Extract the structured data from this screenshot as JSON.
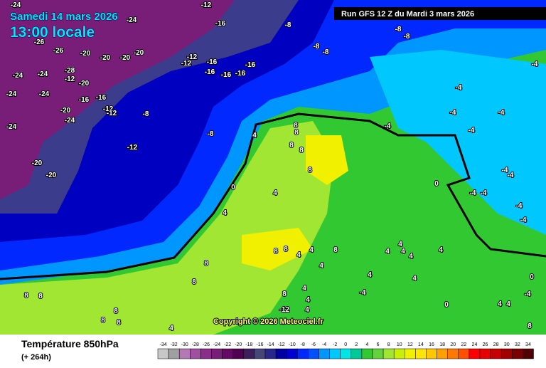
{
  "header": {
    "date": "Samedi 14 mars 2026",
    "time": "13:00 locale",
    "run": "Run GFS 12 Z du Mardi 3 mars 2026"
  },
  "map": {
    "copyright": "Copyright © 2026 Meteociel.fr",
    "labels": [
      -12,
      -16,
      -8,
      -8,
      -8,
      -8,
      -8,
      -4,
      -26,
      -26,
      -20,
      -20,
      -20,
      -20,
      -12,
      -12,
      -16,
      -16,
      -16,
      -16,
      -16,
      -24,
      -24,
      -28,
      -12,
      -20,
      -24,
      -24,
      -16,
      -16,
      -12,
      -12,
      -8,
      -20,
      -24,
      -24,
      -8,
      -12,
      -20,
      -20,
      -4,
      -4,
      -4,
      -4,
      -4,
      -4,
      -4,
      -4,
      -4,
      -4,
      -4,
      4,
      8,
      8,
      8,
      8,
      8,
      0,
      4,
      4,
      0,
      8,
      8,
      8,
      4,
      4,
      8,
      4,
      4,
      4,
      4,
      4,
      4,
      4,
      4,
      8,
      8,
      8,
      8,
      4,
      4,
      -4,
      4,
      -12,
      -4,
      8,
      8,
      8,
      4,
      0,
      4,
      4,
      0,
      8,
      -24,
      -24
    ]
  },
  "legend": {
    "title": "Température 850hPa",
    "subtitle": "(+ 264h)",
    "scale": [
      {
        "value": -34,
        "color": "#c8c8c8"
      },
      {
        "value": -32,
        "color": "#a0a0a0"
      },
      {
        "value": -30,
        "color": "#b478b4"
      },
      {
        "value": -28,
        "color": "#a050a0"
      },
      {
        "value": -26,
        "color": "#8c2d8c"
      },
      {
        "value": -24,
        "color": "#781e78"
      },
      {
        "value": -22,
        "color": "#640a64"
      },
      {
        "value": -20,
        "color": "#500050"
      },
      {
        "value": -18,
        "color": "#3c1e5a"
      },
      {
        "value": -16,
        "color": "#464678"
      },
      {
        "value": -14,
        "color": "#28288c"
      },
      {
        "value": -12,
        "color": "#0000a0"
      },
      {
        "value": -10,
        "color": "#0000d0"
      },
      {
        "value": -8,
        "color": "#0028ff"
      },
      {
        "value": -6,
        "color": "#0050ff"
      },
      {
        "value": -4,
        "color": "#0096ff"
      },
      {
        "value": -2,
        "color": "#00c8ff"
      },
      {
        "value": 0,
        "color": "#00e6e6"
      },
      {
        "value": 2,
        "color": "#00c896"
      },
      {
        "value": 4,
        "color": "#32c832"
      },
      {
        "value": 6,
        "color": "#64d23c"
      },
      {
        "value": 8,
        "color": "#a0e632"
      },
      {
        "value": 10,
        "color": "#c8f000"
      },
      {
        "value": 12,
        "color": "#f0f000"
      },
      {
        "value": 14,
        "color": "#ffe600"
      },
      {
        "value": 16,
        "color": "#ffc800"
      },
      {
        "value": 18,
        "color": "#ffa000"
      },
      {
        "value": 20,
        "color": "#ff7800"
      },
      {
        "value": 22,
        "color": "#ff5000"
      },
      {
        "value": 24,
        "color": "#ff0000"
      },
      {
        "value": 26,
        "color": "#e60000"
      },
      {
        "value": 28,
        "color": "#c80000"
      },
      {
        "value": 30,
        "color": "#a00000"
      },
      {
        "value": 32,
        "color": "#780000"
      },
      {
        "value": 34,
        "color": "#500000"
      }
    ]
  }
}
